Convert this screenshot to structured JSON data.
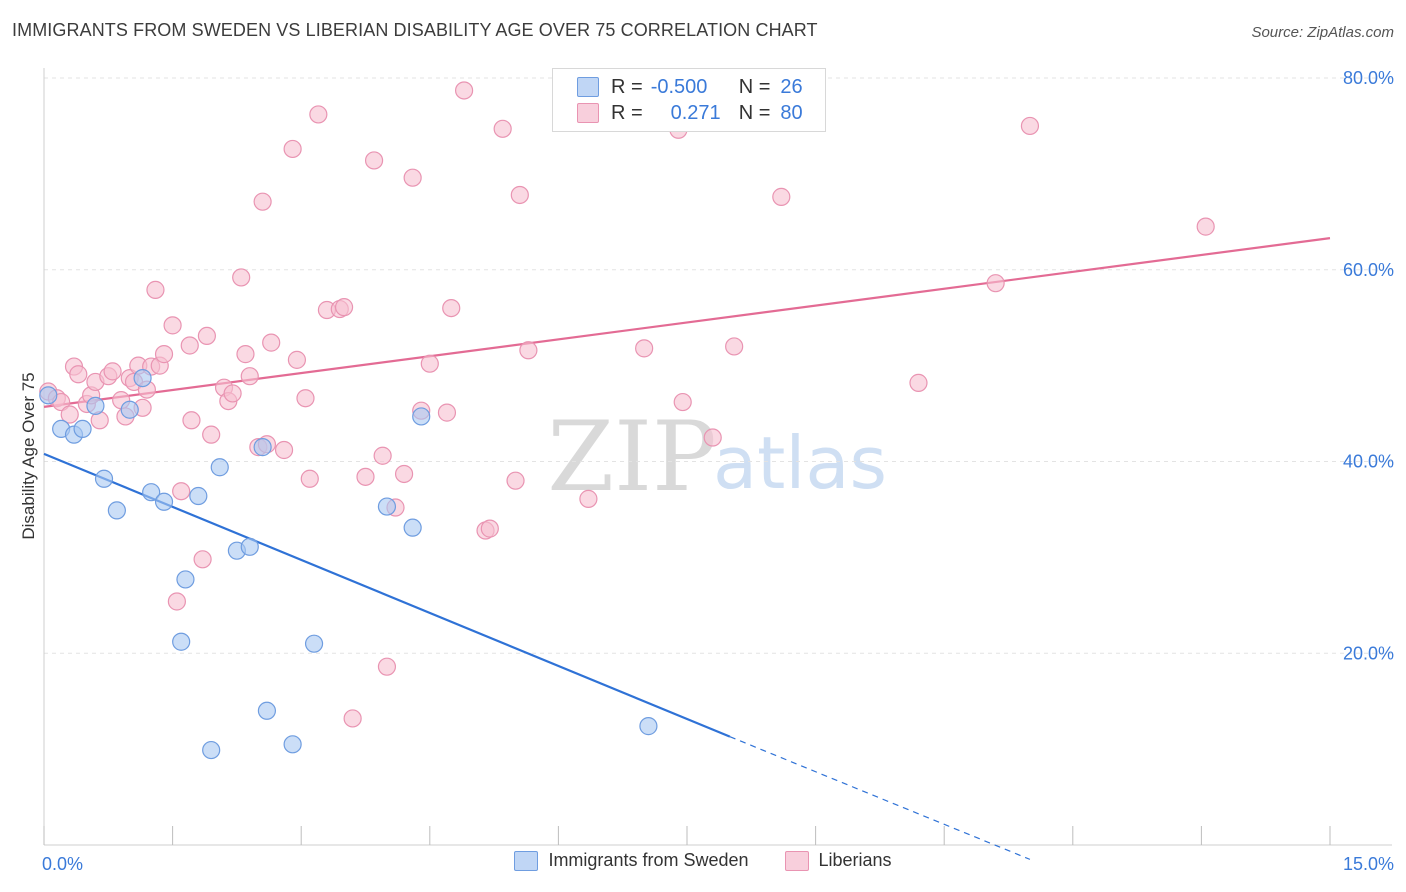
{
  "header": {
    "title": "IMMIGRANTS FROM SWEDEN VS LIBERIAN DISABILITY AGE OVER 75 CORRELATION CHART",
    "source": "Source: ZipAtlas.com"
  },
  "watermark": {
    "zip": "ZIP",
    "atlas": "atlas"
  },
  "colors": {
    "sweden_fill": "#a9c8f2",
    "sweden_stroke": "#6f9de0",
    "sweden_line": "#2f72d6",
    "liberian_fill": "#f6bfd1",
    "liberian_stroke": "#e994b2",
    "liberian_line": "#e36b94",
    "tick_label": "#3a7ad9",
    "grid": "#e3e3e3"
  },
  "stats_box": {
    "rows": [
      {
        "r_label": "R =",
        "r_value": "-0.500",
        "n_label": "N =",
        "n_value": "26"
      },
      {
        "r_label": "R =",
        "r_value": "0.271",
        "n_label": "N =",
        "n_value": "80"
      }
    ]
  },
  "legend": {
    "sweden": "Immigrants from Sweden",
    "liberian": "Liberians"
  },
  "chart_data": {
    "type": "scatter",
    "title": "IMMIGRANTS FROM SWEDEN VS LIBERIAN DISABILITY AGE OVER 75 CORRELATION CHART",
    "xlabel": "",
    "ylabel": "Disability Age Over 75",
    "xlim": [
      0,
      15
    ],
    "ylim": [
      0,
      80
    ],
    "x_tick_labels": [
      {
        "value": 0,
        "label": "0.0%"
      },
      {
        "value": 15,
        "label": "15.0%"
      }
    ],
    "y_tick_labels": [
      {
        "value": 20,
        "label": "20.0%"
      },
      {
        "value": 40,
        "label": "40.0%"
      },
      {
        "value": 60,
        "label": "60.0%"
      },
      {
        "value": 80,
        "label": "80.0%"
      }
    ],
    "x_minor_ticks": [
      0,
      1.5,
      3,
      4.5,
      6,
      7.5,
      9,
      10.5,
      12,
      13.5,
      15
    ],
    "grid": true,
    "series": [
      {
        "name": "Immigrants from Sweden",
        "color": "#6f9de0",
        "points": [
          [
            0.05,
            46.9
          ],
          [
            0.2,
            43.4
          ],
          [
            0.35,
            42.8
          ],
          [
            0.45,
            43.4
          ],
          [
            0.6,
            45.8
          ],
          [
            0.7,
            38.2
          ],
          [
            0.85,
            34.9
          ],
          [
            1.0,
            45.4
          ],
          [
            1.15,
            48.7
          ],
          [
            1.25,
            36.8
          ],
          [
            1.4,
            35.8
          ],
          [
            1.6,
            21.2
          ],
          [
            1.65,
            27.7
          ],
          [
            1.8,
            36.4
          ],
          [
            1.95,
            9.9
          ],
          [
            2.05,
            39.4
          ],
          [
            2.25,
            30.7
          ],
          [
            2.4,
            31.1
          ],
          [
            2.55,
            41.5
          ],
          [
            2.6,
            14.0
          ],
          [
            2.9,
            10.5
          ],
          [
            3.15,
            21.0
          ],
          [
            4.0,
            35.3
          ],
          [
            4.3,
            33.1
          ],
          [
            4.4,
            44.7
          ],
          [
            7.05,
            12.4
          ]
        ],
        "trend": {
          "x": [
            0,
            8.0
          ],
          "y": [
            40.8,
            11.3
          ],
          "dash_to": [
            11.5,
            -1.5
          ]
        }
      },
      {
        "name": "Liberians",
        "color": "#e994b2",
        "points": [
          [
            0.05,
            47.3
          ],
          [
            0.15,
            46.6
          ],
          [
            0.2,
            46.2
          ],
          [
            0.3,
            44.9
          ],
          [
            0.35,
            49.9
          ],
          [
            0.4,
            49.1
          ],
          [
            0.5,
            46.0
          ],
          [
            0.55,
            46.9
          ],
          [
            0.6,
            48.3
          ],
          [
            0.65,
            44.3
          ],
          [
            0.75,
            48.9
          ],
          [
            0.8,
            49.4
          ],
          [
            0.9,
            46.4
          ],
          [
            0.95,
            44.7
          ],
          [
            1.0,
            48.7
          ],
          [
            1.05,
            48.3
          ],
          [
            1.1,
            50.0
          ],
          [
            1.15,
            45.6
          ],
          [
            1.2,
            47.5
          ],
          [
            1.25,
            49.9
          ],
          [
            1.3,
            57.9
          ],
          [
            1.35,
            50.0
          ],
          [
            1.4,
            51.2
          ],
          [
            1.5,
            54.2
          ],
          [
            1.55,
            25.4
          ],
          [
            1.6,
            36.9
          ],
          [
            1.7,
            52.1
          ],
          [
            1.72,
            44.3
          ],
          [
            1.85,
            29.8
          ],
          [
            1.9,
            53.1
          ],
          [
            1.95,
            42.8
          ],
          [
            2.1,
            47.7
          ],
          [
            2.15,
            46.3
          ],
          [
            2.2,
            47.1
          ],
          [
            2.3,
            59.2
          ],
          [
            2.35,
            51.2
          ],
          [
            2.4,
            48.9
          ],
          [
            2.5,
            41.5
          ],
          [
            2.55,
            67.1
          ],
          [
            2.6,
            41.8
          ],
          [
            2.65,
            52.4
          ],
          [
            2.8,
            41.2
          ],
          [
            2.9,
            72.6
          ],
          [
            2.95,
            50.6
          ],
          [
            3.05,
            46.6
          ],
          [
            3.1,
            38.2
          ],
          [
            3.2,
            76.2
          ],
          [
            3.3,
            55.8
          ],
          [
            3.45,
            55.9
          ],
          [
            3.5,
            56.1
          ],
          [
            3.6,
            13.2
          ],
          [
            3.75,
            38.4
          ],
          [
            3.85,
            71.4
          ],
          [
            3.95,
            40.6
          ],
          [
            4.0,
            18.6
          ],
          [
            4.1,
            35.2
          ],
          [
            4.2,
            38.7
          ],
          [
            4.3,
            69.6
          ],
          [
            4.4,
            45.3
          ],
          [
            4.5,
            50.2
          ],
          [
            4.7,
            45.1
          ],
          [
            4.75,
            56.0
          ],
          [
            4.9,
            78.7
          ],
          [
            5.15,
            32.8
          ],
          [
            5.2,
            33.0
          ],
          [
            5.35,
            74.7
          ],
          [
            5.5,
            38.0
          ],
          [
            5.55,
            67.8
          ],
          [
            5.65,
            51.6
          ],
          [
            6.35,
            36.1
          ],
          [
            7.0,
            51.8
          ],
          [
            7.4,
            74.6
          ],
          [
            7.45,
            46.2
          ],
          [
            7.8,
            42.5
          ],
          [
            8.05,
            52.0
          ],
          [
            8.6,
            67.6
          ],
          [
            10.2,
            48.2
          ],
          [
            11.1,
            58.6
          ],
          [
            11.5,
            75.0
          ],
          [
            13.55,
            64.5
          ]
        ],
        "trend": {
          "x": [
            0,
            15.0
          ],
          "y": [
            45.7,
            63.3
          ]
        }
      }
    ]
  }
}
